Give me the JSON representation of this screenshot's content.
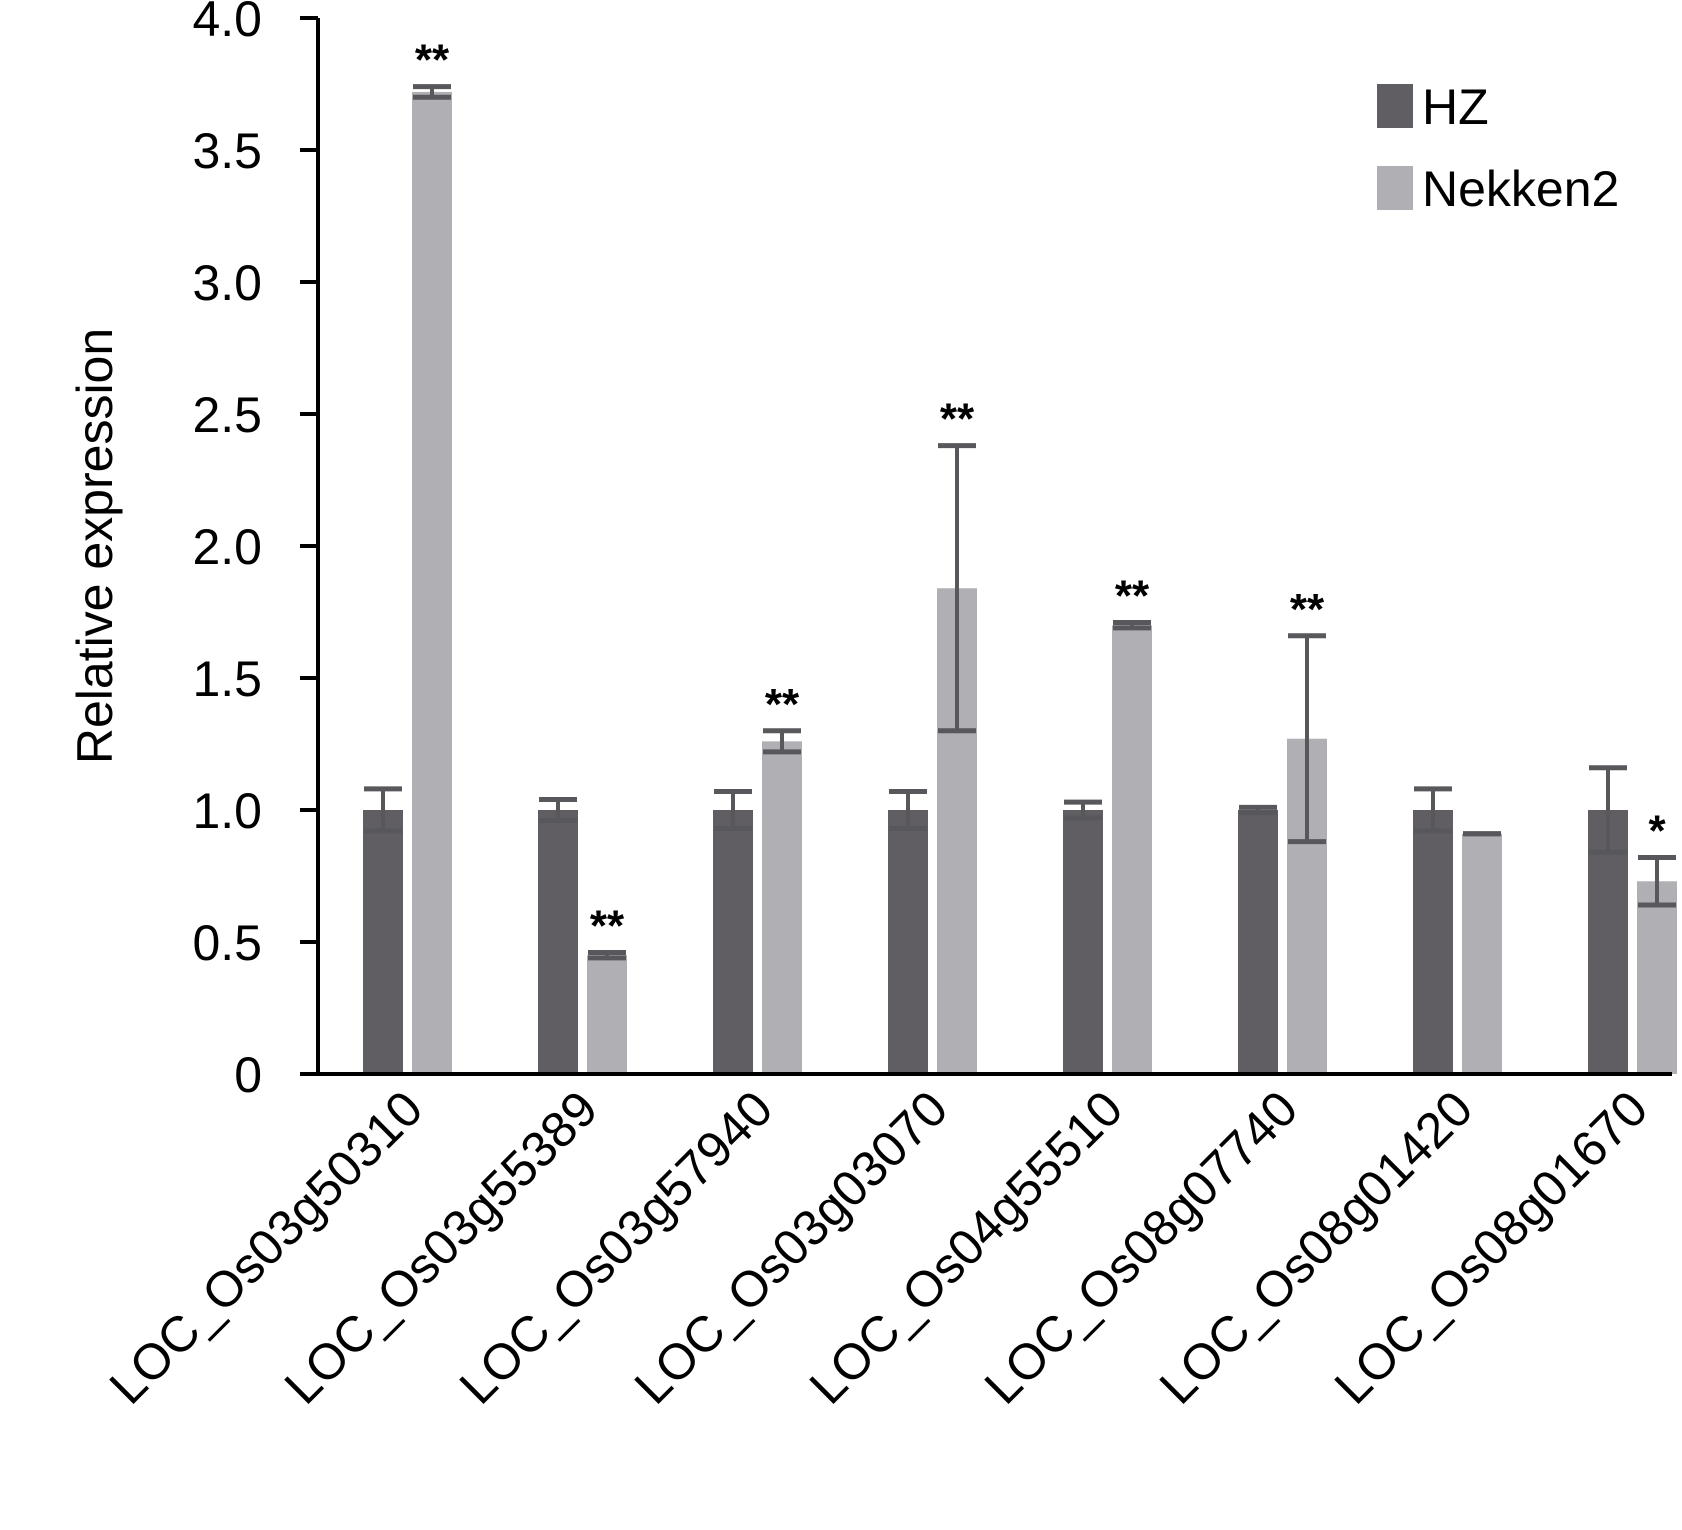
{
  "chart_data": {
    "type": "bar",
    "ylabel": "Relative expression",
    "ylim": [
      0,
      4.0
    ],
    "yticks": [
      0,
      0.5,
      1.0,
      1.5,
      2.0,
      2.5,
      3.0,
      3.5,
      4.0
    ],
    "ytick_labels": [
      "0",
      "0.5",
      "1.0",
      "1.5",
      "2.0",
      "2.5",
      "3.0",
      "3.5",
      "4.0"
    ],
    "categories": [
      "LOC_Os03g50310",
      "LOC_Os03g55389",
      "LOC_Os03g57940",
      "LOC_Os03g03070",
      "LOC_Os04g55510",
      "LOC_Os08g07740",
      "LOC_Os08g01420",
      "LOC_Os08g01670"
    ],
    "series": [
      {
        "name": "HZ",
        "color": "#605e62",
        "values": [
          1.0,
          1.0,
          1.0,
          1.0,
          1.0,
          1.0,
          1.0,
          1.0
        ],
        "errors": [
          0.08,
          0.04,
          0.07,
          0.07,
          0.03,
          0.01,
          0.08,
          0.16
        ]
      },
      {
        "name": "Nekken2",
        "color": "#b0afb4",
        "values": [
          3.72,
          0.45,
          1.26,
          1.84,
          1.7,
          1.27,
          0.91,
          0.73
        ],
        "errors": [
          0.02,
          0.01,
          0.04,
          0.54,
          0.01,
          0.39,
          0.0,
          0.09
        ],
        "significance": [
          "**",
          "**",
          "**",
          "**",
          "**",
          "**",
          "",
          "*"
        ]
      }
    ],
    "legend": {
      "position": "top-right",
      "entries": [
        "HZ",
        "Nekken2"
      ]
    },
    "grid": false
  },
  "colors": {
    "error_bar": "#58575b",
    "axis": "#000000"
  }
}
